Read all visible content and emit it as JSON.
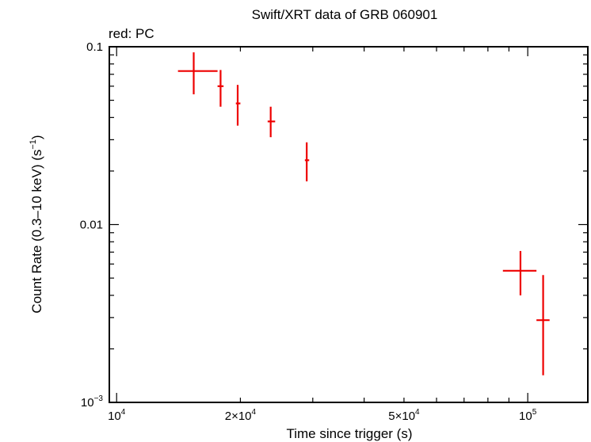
{
  "chart_data": {
    "type": "scatter",
    "title": "Swift/XRT data of GRB 060901",
    "subtitle": "red: PC",
    "xlabel": "Time since trigger (s)",
    "ylabel_main": "Count Rate (0.3–10 keV) (s",
    "ylabel_sup": "−1",
    "ylabel_end": ")",
    "x_scale": "log",
    "y_scale": "log",
    "xlim": [
      9600,
      140000
    ],
    "ylim": [
      0.001,
      0.1
    ],
    "x_ticks": [
      {
        "value": 10000,
        "mant": "10",
        "exp": "4"
      },
      {
        "value": 20000,
        "mant": "2×10",
        "exp": "4"
      },
      {
        "value": 50000,
        "mant": "5×10",
        "exp": "4"
      },
      {
        "value": 100000,
        "mant": "10",
        "exp": "5"
      }
    ],
    "y_ticks": [
      {
        "value": 0.1,
        "mant": "0.1",
        "exp": ""
      },
      {
        "value": 0.01,
        "mant": "0.01",
        "exp": ""
      },
      {
        "value": 0.001,
        "mant": "10",
        "exp": "−3"
      }
    ],
    "series": [
      {
        "color": "#ee0000",
        "points": [
          {
            "x": 15400,
            "xlo": 14100,
            "xhi": 17600,
            "y": 0.073,
            "ylo": 0.054,
            "yhi": 0.093
          },
          {
            "x": 17900,
            "xlo": 17600,
            "xhi": 18200,
            "y": 0.06,
            "ylo": 0.046,
            "yhi": 0.074
          },
          {
            "x": 19700,
            "xlo": 19500,
            "xhi": 20000,
            "y": 0.048,
            "ylo": 0.036,
            "yhi": 0.061
          },
          {
            "x": 23700,
            "xlo": 23300,
            "xhi": 24300,
            "y": 0.038,
            "ylo": 0.031,
            "yhi": 0.046
          },
          {
            "x": 29000,
            "xlo": 28700,
            "xhi": 29400,
            "y": 0.023,
            "ylo": 0.0175,
            "yhi": 0.029
          },
          {
            "x": 96000,
            "xlo": 87000,
            "xhi": 105000,
            "y": 0.0055,
            "ylo": 0.004,
            "yhi": 0.0071
          },
          {
            "x": 109000,
            "xlo": 105000,
            "xhi": 113000,
            "y": 0.0029,
            "ylo": 0.00142,
            "yhi": 0.0052
          }
        ]
      }
    ]
  }
}
